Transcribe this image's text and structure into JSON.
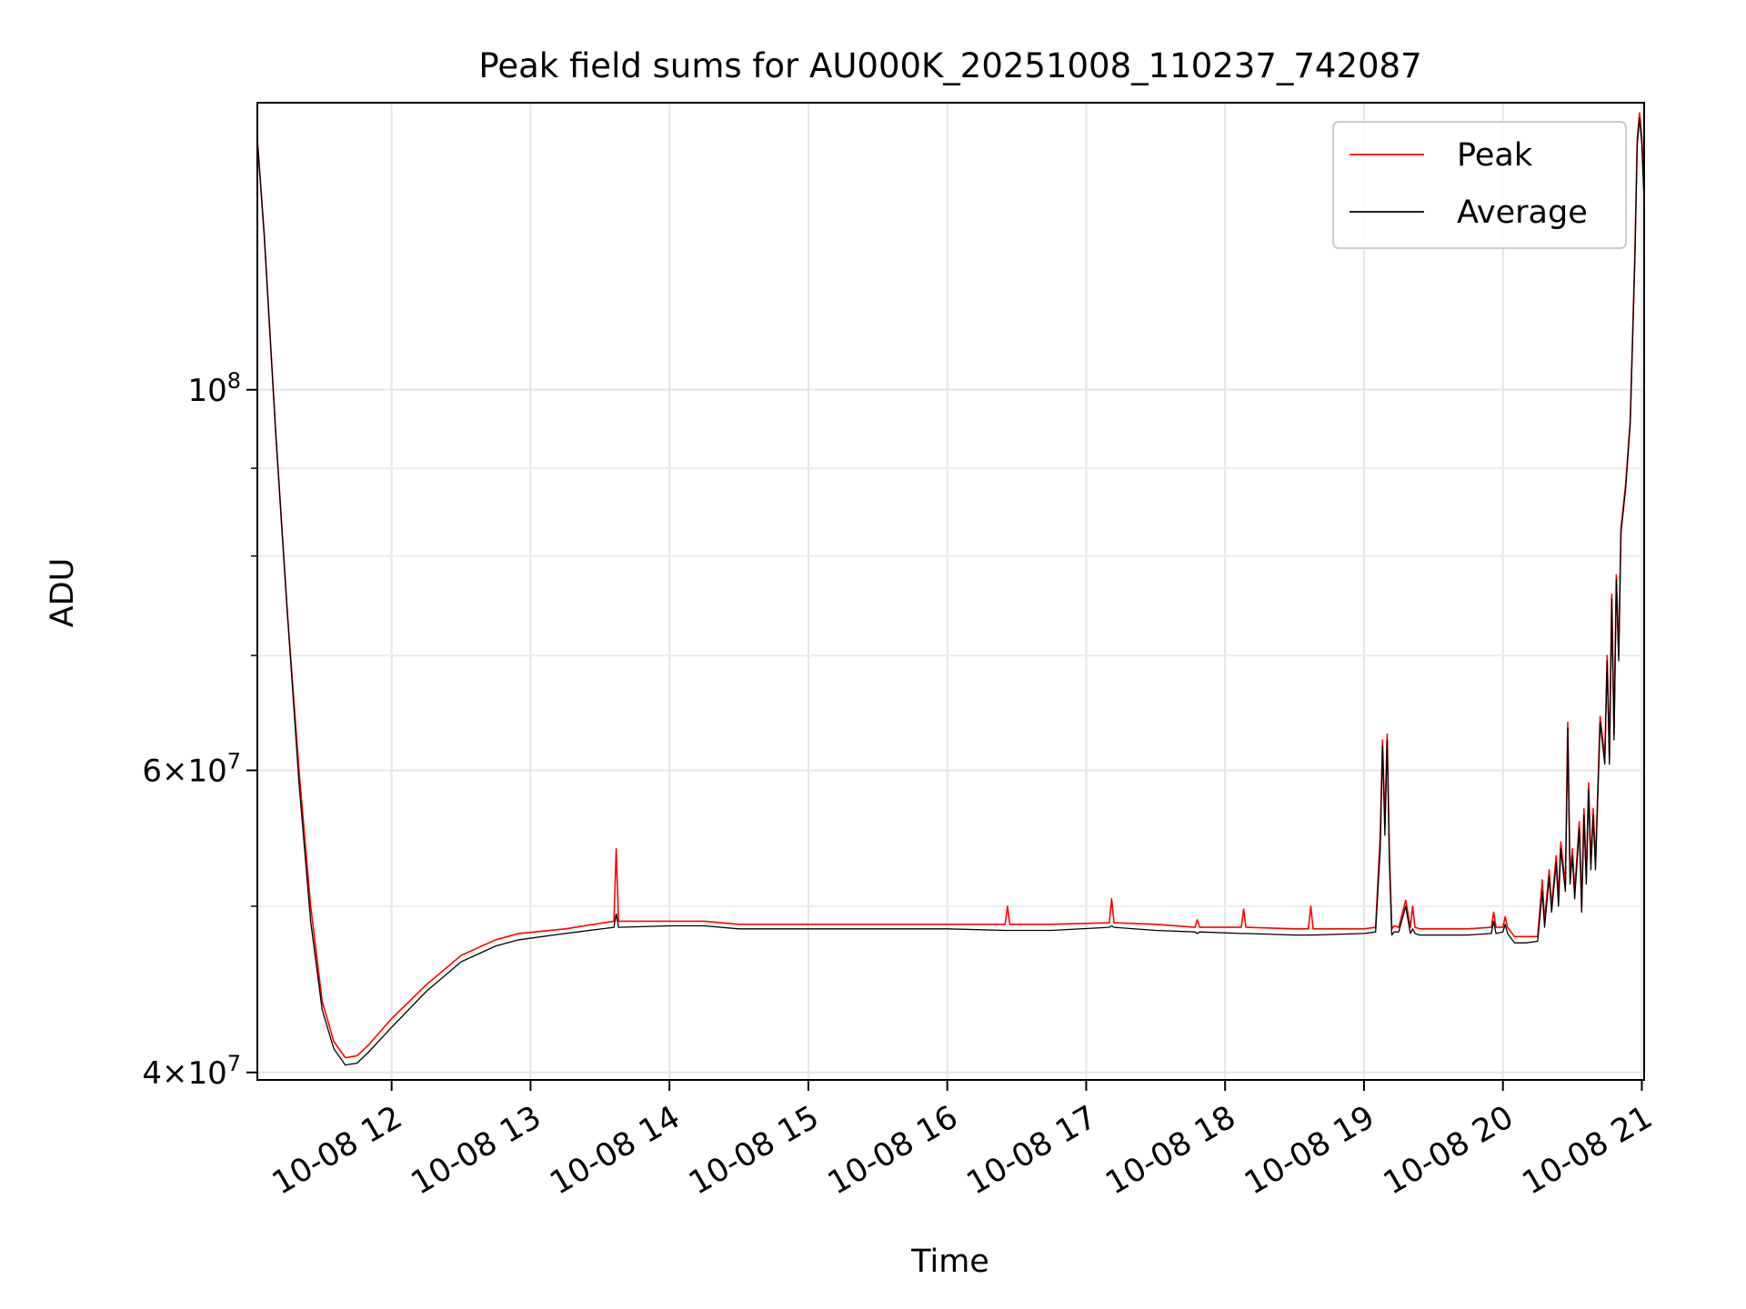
{
  "chart_data": {
    "type": "line",
    "title": "Peak field sums for AU000K_20251008_110237_742087",
    "xlabel": "Time",
    "ylabel": "ADU",
    "x_scale": "time",
    "y_scale": "log",
    "xlim": [
      "2025-10-08 11:02",
      "2025-10-08 21:01"
    ],
    "ylim": [
      39600000,
      147000000
    ],
    "grid": true,
    "legend": "top-right",
    "x_tick_labels": [
      "10-08 12",
      "10-08 13",
      "10-08 14",
      "10-08 15",
      "10-08 16",
      "10-08 17",
      "10-08 18",
      "10-08 19",
      "10-08 20",
      "10-08 21"
    ],
    "x_ticks": [
      "2025-10-08 12:00",
      "2025-10-08 13:00",
      "2025-10-08 14:00",
      "2025-10-08 15:00",
      "2025-10-08 16:00",
      "2025-10-08 17:00",
      "2025-10-08 18:00",
      "2025-10-08 19:00",
      "2025-10-08 20:00",
      "2025-10-08 21:00"
    ],
    "y_ticks": [
      {
        "value": 40000000,
        "mantissa": "4",
        "exponent": "7"
      },
      {
        "value": 60000000,
        "mantissa": "6",
        "exponent": "7"
      },
      {
        "value": 100000000,
        "mantissa": "",
        "exponent": "8"
      }
    ],
    "y_minor_ticks": [
      50000000,
      70000000,
      80000000,
      90000000
    ],
    "x": [
      "2025-10-08 11:02",
      "2025-10-08 11:05",
      "2025-10-08 11:10",
      "2025-10-08 11:15",
      "2025-10-08 11:20",
      "2025-10-08 11:25",
      "2025-10-08 11:30",
      "2025-10-08 11:35",
      "2025-10-08 11:40",
      "2025-10-08 11:45",
      "2025-10-08 11:50",
      "2025-10-08 12:00",
      "2025-10-08 12:15",
      "2025-10-08 12:30",
      "2025-10-08 12:45",
      "2025-10-08 12:55",
      "2025-10-08 13:15",
      "2025-10-08 13:36",
      "2025-10-08 13:37",
      "2025-10-08 13:38",
      "2025-10-08 14:00",
      "2025-10-08 14:15",
      "2025-10-08 14:30",
      "2025-10-08 15:00",
      "2025-10-08 15:30",
      "2025-10-08 16:00",
      "2025-10-08 16:25",
      "2025-10-08 16:26",
      "2025-10-08 16:27",
      "2025-10-08 16:45",
      "2025-10-08 17:10",
      "2025-10-08 17:11",
      "2025-10-08 17:12",
      "2025-10-08 17:30",
      "2025-10-08 17:47",
      "2025-10-08 17:48",
      "2025-10-08 17:49",
      "2025-10-08 18:07",
      "2025-10-08 18:08",
      "2025-10-08 18:09",
      "2025-10-08 18:30",
      "2025-10-08 18:36",
      "2025-10-08 18:37",
      "2025-10-08 18:38",
      "2025-10-08 19:00",
      "2025-10-08 19:05",
      "2025-10-08 19:07",
      "2025-10-08 19:08",
      "2025-10-08 19:09",
      "2025-10-08 19:10",
      "2025-10-08 19:11",
      "2025-10-08 19:12",
      "2025-10-08 19:13",
      "2025-10-08 19:15",
      "2025-10-08 19:18",
      "2025-10-08 19:20",
      "2025-10-08 19:21",
      "2025-10-08 19:22",
      "2025-10-08 19:24",
      "2025-10-08 19:30",
      "2025-10-08 19:45",
      "2025-10-08 19:55",
      "2025-10-08 19:56",
      "2025-10-08 19:57",
      "2025-10-08 20:00",
      "2025-10-08 20:01",
      "2025-10-08 20:02",
      "2025-10-08 20:05",
      "2025-10-08 20:10",
      "2025-10-08 20:15",
      "2025-10-08 20:17",
      "2025-10-08 20:18",
      "2025-10-08 20:20",
      "2025-10-08 20:21",
      "2025-10-08 20:23",
      "2025-10-08 20:24",
      "2025-10-08 20:25",
      "2025-10-08 20:27",
      "2025-10-08 20:28",
      "2025-10-08 20:29",
      "2025-10-08 20:30",
      "2025-10-08 20:31",
      "2025-10-08 20:33",
      "2025-10-08 20:34",
      "2025-10-08 20:35",
      "2025-10-08 20:36",
      "2025-10-08 20:37",
      "2025-10-08 20:38",
      "2025-10-08 20:39",
      "2025-10-08 20:40",
      "2025-10-08 20:42",
      "2025-10-08 20:44",
      "2025-10-08 20:45",
      "2025-10-08 20:46",
      "2025-10-08 20:47",
      "2025-10-08 20:48",
      "2025-10-08 20:49",
      "2025-10-08 20:50",
      "2025-10-08 20:51",
      "2025-10-08 20:53",
      "2025-10-08 20:55",
      "2025-10-08 20:57",
      "2025-10-08 20:58",
      "2025-10-08 20:59",
      "2025-10-08 21:00",
      "2025-10-08 21:01"
    ],
    "series": [
      {
        "name": "Peak",
        "color": "#ff0000",
        "values": [
          140000000,
          123000000,
          94000000,
          74000000,
          60000000,
          50000000,
          44000000,
          41700000,
          40800000,
          40900000,
          41500000,
          43000000,
          45000000,
          46800000,
          47800000,
          48200000,
          48500000,
          49000000,
          54000000,
          49000000,
          49000000,
          49000000,
          48800000,
          48800000,
          48800000,
          48800000,
          48800000,
          50000000,
          48800000,
          48800000,
          48900000,
          50500000,
          48900000,
          48800000,
          48600000,
          49100000,
          48600000,
          48600000,
          49800000,
          48600000,
          48500000,
          48500000,
          50000000,
          48500000,
          48500000,
          48600000,
          55000000,
          62500000,
          56000000,
          63000000,
          53500000,
          48500000,
          48700000,
          48600000,
          50400000,
          48600000,
          50000000,
          48600000,
          48500000,
          48500000,
          48500000,
          48600000,
          49600000,
          48600000,
          48600000,
          49300000,
          48600000,
          48000000,
          48000000,
          48000000,
          51800000,
          49000000,
          52500000,
          50000000,
          53500000,
          50500000,
          54500000,
          51500000,
          64000000,
          52000000,
          54000000,
          51000000,
          56000000,
          50000000,
          57000000,
          52000000,
          59000000,
          53000000,
          57000000,
          53000000,
          64500000,
          61000000,
          70000000,
          61000000,
          76000000,
          63000000,
          78000000,
          70000000,
          83000000,
          88000000,
          96000000,
          120000000,
          140000000,
          145000000,
          140000000,
          130000000
        ]
      },
      {
        "name": "Average",
        "color": "#000000",
        "values": [
          140000000,
          123000000,
          94000000,
          74000000,
          59000000,
          49000000,
          43500000,
          41300000,
          40400000,
          40500000,
          41100000,
          42500000,
          44600000,
          46400000,
          47400000,
          47800000,
          48200000,
          48600000,
          49500000,
          48600000,
          48700000,
          48700000,
          48500000,
          48500000,
          48500000,
          48500000,
          48400000,
          48400000,
          48400000,
          48400000,
          48600000,
          48700000,
          48600000,
          48400000,
          48300000,
          48200000,
          48300000,
          48200000,
          48200000,
          48200000,
          48100000,
          48100000,
          48100000,
          48100000,
          48200000,
          48300000,
          54000000,
          62000000,
          55000000,
          62500000,
          53000000,
          48100000,
          48300000,
          48300000,
          50000000,
          48200000,
          48500000,
          48200000,
          48100000,
          48100000,
          48100000,
          48200000,
          49000000,
          48200000,
          48300000,
          48800000,
          48200000,
          47600000,
          47600000,
          47700000,
          51000000,
          48600000,
          52000000,
          49600000,
          53000000,
          50000000,
          54000000,
          51000000,
          63500000,
          51500000,
          53500000,
          50500000,
          55500000,
          49600000,
          56500000,
          51500000,
          58500000,
          52500000,
          56500000,
          52500000,
          64000000,
          60500000,
          69500000,
          60500000,
          75500000,
          62500000,
          77500000,
          69500000,
          82500000,
          87500000,
          95500000,
          119000000,
          139000000,
          144000000,
          139000000,
          129000000
        ]
      }
    ]
  }
}
